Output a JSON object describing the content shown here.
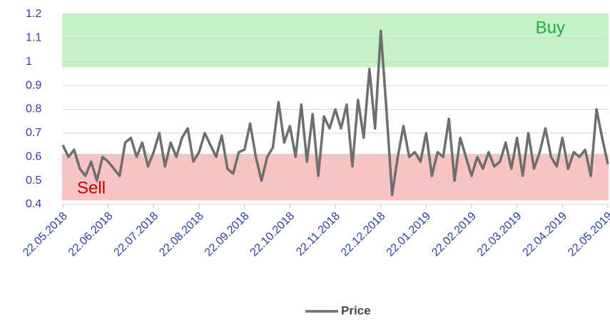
{
  "chart_data": {
    "type": "line",
    "categories": [
      "22.05.2018",
      null,
      null,
      null,
      null,
      null,
      null,
      null,
      "22.06.2018",
      null,
      null,
      null,
      null,
      null,
      null,
      null,
      "22.07.2018",
      null,
      null,
      null,
      null,
      null,
      null,
      null,
      "22.08.2018",
      null,
      null,
      null,
      null,
      null,
      null,
      null,
      "22.09.2018",
      null,
      null,
      null,
      null,
      null,
      null,
      null,
      "22.10.2018",
      null,
      null,
      null,
      null,
      null,
      null,
      null,
      "22.11.2018",
      null,
      null,
      null,
      null,
      null,
      null,
      null,
      "22.12.2018",
      null,
      null,
      null,
      null,
      null,
      null,
      null,
      "22.01.2019",
      null,
      null,
      null,
      null,
      null,
      null,
      null,
      "22.02.2019",
      null,
      null,
      null,
      null,
      null,
      null,
      null,
      "22.03.2019",
      null,
      null,
      null,
      null,
      null,
      null,
      null,
      "22.04.2019",
      null,
      null,
      null,
      null,
      null,
      null,
      null,
      "22.05.2019"
    ],
    "series": [
      {
        "name": "Price",
        "color": "#6e6e6e",
        "values": [
          0.65,
          0.6,
          0.63,
          0.55,
          0.52,
          0.58,
          0.5,
          0.6,
          0.58,
          0.55,
          0.52,
          0.66,
          0.68,
          0.6,
          0.66,
          0.56,
          0.62,
          0.7,
          0.56,
          0.66,
          0.6,
          0.68,
          0.72,
          0.58,
          0.62,
          0.7,
          0.65,
          0.6,
          0.69,
          0.55,
          0.53,
          0.62,
          0.63,
          0.74,
          0.6,
          0.5,
          0.6,
          0.64,
          0.83,
          0.66,
          0.73,
          0.6,
          0.82,
          0.58,
          0.78,
          0.52,
          0.77,
          0.72,
          0.8,
          0.72,
          0.82,
          0.56,
          0.84,
          0.68,
          0.97,
          0.72,
          1.13,
          0.8,
          0.44,
          0.6,
          0.73,
          0.6,
          0.62,
          0.58,
          0.7,
          0.52,
          0.62,
          0.6,
          0.76,
          0.5,
          0.68,
          0.6,
          0.52,
          0.6,
          0.55,
          0.62,
          0.56,
          0.58,
          0.66,
          0.55,
          0.68,
          0.52,
          0.7,
          0.55,
          0.62,
          0.72,
          0.6,
          0.56,
          0.68,
          0.55,
          0.62,
          0.6,
          0.63,
          0.52,
          0.8,
          0.68,
          0.57
        ]
      }
    ],
    "bands": [
      {
        "label": "Buy",
        "from": 0.98,
        "to": 1.2,
        "color": "#c6f0c6",
        "text_color": "#1fae3c"
      },
      {
        "label": "Sell",
        "from": 0.42,
        "to": 0.61,
        "color": "#f9c3c3",
        "text_color": "#c00000"
      }
    ],
    "ylim": [
      0.4,
      1.2
    ],
    "yticks": [
      0.4,
      0.5,
      0.6,
      0.7,
      0.8,
      0.9,
      1,
      1.1,
      1.2
    ],
    "grid": true,
    "legend": "bottom"
  }
}
